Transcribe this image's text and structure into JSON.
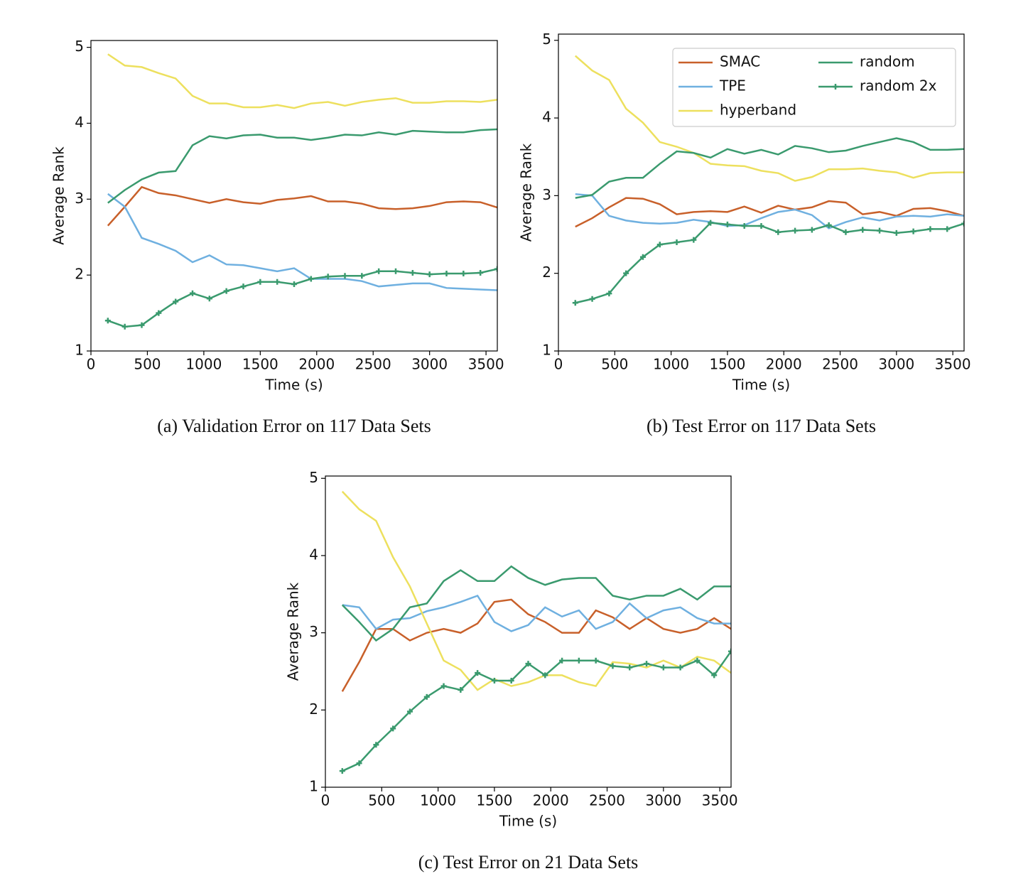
{
  "chart_data": [
    {
      "type": "line",
      "caption": "(a) Validation Error on 117 Data Sets",
      "xlabel": "Time (s)",
      "ylabel": "Average Rank",
      "x": [
        150,
        300,
        450,
        600,
        750,
        900,
        1050,
        1200,
        1350,
        1500,
        1650,
        1800,
        1950,
        2100,
        2250,
        2400,
        2550,
        2700,
        2850,
        3000,
        3150,
        3300,
        3450,
        3600
      ],
      "xlim": [
        0,
        3600
      ],
      "ylim": [
        1,
        5.09
      ],
      "xticks": [
        0,
        500,
        1000,
        1500,
        2000,
        2500,
        3000,
        3500
      ],
      "yticks": [
        1,
        2,
        3,
        4,
        5
      ],
      "legend": false,
      "series": [
        {
          "color": "#c8602a",
          "values": [
            2.65,
            2.9,
            3.16,
            3.08,
            3.05,
            3.0,
            2.95,
            3.0,
            2.96,
            2.94,
            2.99,
            3.01,
            3.04,
            2.97,
            2.97,
            2.94,
            2.88,
            2.87,
            2.88,
            2.91,
            2.96,
            2.97,
            2.96,
            2.89
          ]
        },
        {
          "color": "#6fb0e0",
          "values": [
            3.07,
            2.9,
            2.49,
            2.41,
            2.32,
            2.17,
            2.26,
            2.14,
            2.13,
            2.09,
            2.05,
            2.09,
            1.95,
            1.95,
            1.95,
            1.92,
            1.85,
            1.87,
            1.89,
            1.89,
            1.83,
            1.82,
            1.81,
            1.8
          ]
        },
        {
          "color": "#ede05e",
          "values": [
            4.91,
            4.76,
            4.74,
            4.66,
            4.59,
            4.36,
            4.26,
            4.26,
            4.21,
            4.21,
            4.24,
            4.2,
            4.26,
            4.28,
            4.23,
            4.28,
            4.31,
            4.33,
            4.27,
            4.27,
            4.29,
            4.29,
            4.28,
            4.31
          ]
        },
        {
          "color": "#3a9a6e",
          "values": [
            2.95,
            3.12,
            3.26,
            3.35,
            3.37,
            3.71,
            3.83,
            3.8,
            3.84,
            3.85,
            3.81,
            3.81,
            3.78,
            3.81,
            3.85,
            3.84,
            3.88,
            3.85,
            3.9,
            3.89,
            3.88,
            3.88,
            3.91,
            3.92
          ]
        },
        {
          "color": "#3a9a6e",
          "marker": "+",
          "values": [
            1.4,
            1.32,
            1.34,
            1.5,
            1.65,
            1.76,
            1.69,
            1.79,
            1.85,
            1.91,
            1.91,
            1.88,
            1.95,
            1.98,
            1.99,
            1.99,
            2.05,
            2.05,
            2.03,
            2.01,
            2.02,
            2.02,
            2.03,
            2.08
          ]
        }
      ]
    },
    {
      "type": "line",
      "caption": "(b) Test Error on 117 Data Sets",
      "xlabel": "Time (s)",
      "ylabel": "Average Rank",
      "x": [
        150,
        300,
        450,
        600,
        750,
        900,
        1050,
        1200,
        1350,
        1500,
        1650,
        1800,
        1950,
        2100,
        2250,
        2400,
        2550,
        2700,
        2850,
        3000,
        3150,
        3300,
        3450,
        3600
      ],
      "xlim": [
        0,
        3600
      ],
      "ylim": [
        1,
        5.08
      ],
      "xticks": [
        0,
        500,
        1000,
        1500,
        2000,
        2500,
        3000,
        3500
      ],
      "yticks": [
        1,
        2,
        3,
        4,
        5
      ],
      "legend": "upper right",
      "series": [
        {
          "name": "SMAC",
          "color": "#c8602a",
          "values": [
            2.6,
            2.71,
            2.85,
            2.97,
            2.96,
            2.89,
            2.76,
            2.79,
            2.8,
            2.79,
            2.86,
            2.78,
            2.87,
            2.82,
            2.85,
            2.93,
            2.91,
            2.76,
            2.79,
            2.74,
            2.83,
            2.84,
            2.8,
            2.74
          ]
        },
        {
          "name": "TPE",
          "color": "#6fb0e0",
          "values": [
            3.02,
            3.0,
            2.74,
            2.68,
            2.65,
            2.64,
            2.65,
            2.69,
            2.66,
            2.61,
            2.62,
            2.71,
            2.79,
            2.82,
            2.75,
            2.58,
            2.66,
            2.72,
            2.68,
            2.73,
            2.74,
            2.73,
            2.76,
            2.74
          ]
        },
        {
          "name": "hyperband",
          "color": "#ede05e",
          "values": [
            4.8,
            4.61,
            4.49,
            4.12,
            3.94,
            3.69,
            3.63,
            3.55,
            3.41,
            3.39,
            3.38,
            3.32,
            3.29,
            3.19,
            3.24,
            3.34,
            3.34,
            3.35,
            3.32,
            3.3,
            3.23,
            3.29,
            3.3,
            3.3
          ]
        },
        {
          "name": "random",
          "color": "#3a9a6e",
          "values": [
            2.97,
            3.01,
            3.18,
            3.23,
            3.23,
            3.41,
            3.57,
            3.55,
            3.49,
            3.6,
            3.54,
            3.59,
            3.53,
            3.64,
            3.61,
            3.56,
            3.58,
            3.64,
            3.69,
            3.74,
            3.69,
            3.59,
            3.59,
            3.6
          ]
        },
        {
          "name": "random 2x",
          "color": "#3a9a6e",
          "marker": "+",
          "values": [
            1.62,
            1.67,
            1.74,
            2.0,
            2.21,
            2.37,
            2.4,
            2.43,
            2.65,
            2.63,
            2.61,
            2.61,
            2.53,
            2.55,
            2.56,
            2.62,
            2.53,
            2.56,
            2.55,
            2.52,
            2.54,
            2.57,
            2.57,
            2.64
          ]
        }
      ]
    },
    {
      "type": "line",
      "caption": "(c) Test Error on 21 Data Sets",
      "xlabel": "Time (s)",
      "ylabel": "Average Rank",
      "x": [
        150,
        300,
        450,
        600,
        750,
        900,
        1050,
        1200,
        1350,
        1500,
        1650,
        1800,
        1950,
        2100,
        2250,
        2400,
        2550,
        2700,
        2850,
        3000,
        3150,
        3300,
        3450,
        3600
      ],
      "xlim": [
        0,
        3600
      ],
      "ylim": [
        1,
        5.03
      ],
      "xticks": [
        0,
        500,
        1000,
        1500,
        2000,
        2500,
        3000,
        3500
      ],
      "yticks": [
        1,
        2,
        3,
        4,
        5
      ],
      "legend": false,
      "series": [
        {
          "color": "#c8602a",
          "values": [
            2.24,
            2.62,
            3.05,
            3.05,
            2.9,
            3.0,
            3.05,
            3.0,
            3.12,
            3.4,
            3.43,
            3.24,
            3.14,
            3.0,
            3.0,
            3.29,
            3.2,
            3.05,
            3.19,
            3.05,
            3.0,
            3.05,
            3.19,
            3.05
          ]
        },
        {
          "color": "#6fb0e0",
          "values": [
            3.36,
            3.33,
            3.05,
            3.17,
            3.19,
            3.28,
            3.33,
            3.4,
            3.48,
            3.14,
            3.02,
            3.1,
            3.33,
            3.21,
            3.29,
            3.05,
            3.14,
            3.38,
            3.19,
            3.29,
            3.33,
            3.19,
            3.12,
            3.12
          ]
        },
        {
          "color": "#ede05e",
          "values": [
            4.83,
            4.6,
            4.45,
            3.98,
            3.6,
            3.12,
            2.64,
            2.52,
            2.26,
            2.4,
            2.31,
            2.36,
            2.45,
            2.45,
            2.36,
            2.31,
            2.62,
            2.6,
            2.55,
            2.64,
            2.55,
            2.69,
            2.64,
            2.48
          ]
        },
        {
          "color": "#3a9a6e",
          "values": [
            3.36,
            3.14,
            2.9,
            3.05,
            3.33,
            3.38,
            3.67,
            3.81,
            3.67,
            3.67,
            3.86,
            3.71,
            3.62,
            3.69,
            3.71,
            3.71,
            3.48,
            3.43,
            3.48,
            3.48,
            3.57,
            3.43,
            3.6,
            3.6
          ]
        },
        {
          "color": "#3a9a6e",
          "marker": "+",
          "values": [
            1.21,
            1.31,
            1.55,
            1.76,
            1.98,
            2.17,
            2.31,
            2.26,
            2.48,
            2.38,
            2.38,
            2.6,
            2.45,
            2.64,
            2.64,
            2.64,
            2.57,
            2.55,
            2.6,
            2.55,
            2.55,
            2.64,
            2.45,
            2.76
          ]
        }
      ]
    }
  ]
}
